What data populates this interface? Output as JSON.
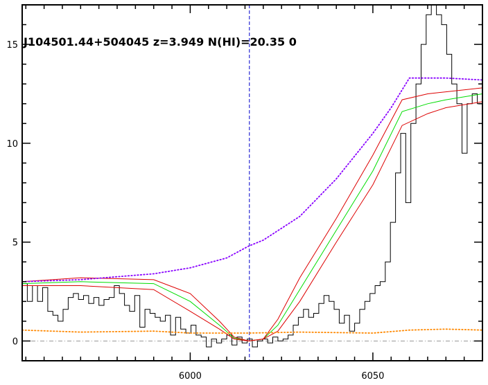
{
  "chart_data": {
    "type": "line",
    "title": "J104501.44+504045 z=3.949 N(HI)=20.35 0",
    "xlabel": "",
    "ylabel": "",
    "xlim": [
      5954,
      6080
    ],
    "ylim": [
      -1.0,
      17.0
    ],
    "x_ticks": [
      6000,
      6050
    ],
    "y_ticks": [
      0,
      5,
      10,
      15
    ],
    "x_minor_step": 5,
    "y_minor_step": 1,
    "grid": false,
    "marker_x": 6016.2,
    "zero_level": 0,
    "colors": {
      "flux": "#000000",
      "model": "#00dd00",
      "model_bounds": "#dd0000",
      "continuum": "#8800ff",
      "error": "#ff8800",
      "marker": "#0000cc",
      "zero_line": "#999999"
    },
    "series": [
      {
        "role": "flux",
        "style": "step",
        "x": [
          5954.0,
          5955.4,
          5956.8,
          5958.2,
          5959.6,
          5961.0,
          5962.4,
          5963.8,
          5965.2,
          5966.6,
          5968.0,
          5969.4,
          5970.8,
          5972.2,
          5973.6,
          5975.0,
          5976.4,
          5977.8,
          5979.2,
          5980.6,
          5982.0,
          5983.4,
          5984.8,
          5986.2,
          5987.6,
          5989.0,
          5990.4,
          5991.8,
          5993.2,
          5994.6,
          5996.0,
          5997.4,
          5998.8,
          6000.2,
          6001.6,
          6003.0,
          6004.4,
          6005.8,
          6007.2,
          6008.6,
          6010.0,
          6011.4,
          6012.8,
          6014.2,
          6015.6,
          6017.0,
          6018.4,
          6019.8,
          6021.2,
          6022.6,
          6024.0,
          6025.4,
          6026.8,
          6028.2,
          6029.6,
          6031.0,
          6032.4,
          6033.8,
          6035.2,
          6036.6,
          6038.0,
          6039.4,
          6040.8,
          6042.2,
          6043.6,
          6045.0,
          6046.4,
          6047.8,
          6049.2,
          6050.6,
          6052.0,
          6053.4,
          6054.8,
          6056.2,
          6057.6,
          6059.0,
          6060.4,
          6061.8,
          6063.2,
          6064.6,
          6066.0,
          6067.4,
          6068.8,
          6070.2,
          6071.6,
          6073.0,
          6074.4,
          6075.8,
          6077.2,
          6078.6,
          6080.0
        ],
        "y": [
          2.9,
          2.0,
          2.8,
          2.0,
          2.7,
          1.5,
          1.3,
          1.0,
          1.6,
          2.2,
          2.4,
          2.1,
          2.3,
          1.9,
          2.2,
          1.8,
          2.1,
          2.2,
          2.8,
          2.4,
          1.8,
          1.5,
          2.3,
          0.7,
          1.6,
          1.4,
          1.2,
          1.0,
          1.3,
          0.3,
          1.2,
          0.6,
          0.4,
          0.8,
          0.3,
          0.2,
          -0.3,
          0.1,
          -0.1,
          0.1,
          0.3,
          -0.2,
          0.2,
          -0.1,
          0.1,
          -0.3,
          0.0,
          0.1,
          -0.1,
          0.2,
          0.0,
          0.1,
          0.3,
          0.8,
          1.2,
          1.6,
          1.2,
          1.4,
          1.9,
          2.3,
          2.0,
          1.6,
          0.9,
          1.3,
          0.5,
          0.9,
          1.6,
          2.0,
          2.4,
          2.8,
          3.0,
          4.0,
          6.0,
          8.5,
          10.5,
          7.0,
          11.0,
          13.0,
          15.0,
          16.5,
          17.0,
          16.5,
          16.0,
          14.5,
          13.0,
          12.0,
          9.5,
          12.0,
          12.5,
          12.0,
          11.5
        ]
      },
      {
        "role": "model",
        "style": "line",
        "x": [
          5954,
          5970,
          5990,
          6000,
          6008,
          6012,
          6016,
          6020,
          6024,
          6030,
          6040,
          6050,
          6058,
          6065,
          6070,
          6080
        ],
        "y": [
          2.9,
          3.0,
          2.9,
          2.0,
          0.8,
          0.15,
          0.0,
          0.1,
          0.8,
          2.6,
          5.6,
          8.6,
          11.6,
          12.0,
          12.2,
          12.5
        ]
      },
      {
        "role": "model-upper",
        "style": "line",
        "x": [
          5954,
          5970,
          5990,
          6000,
          6008,
          6012,
          6016,
          6020,
          6024,
          6030,
          6040,
          6050,
          6058,
          6065,
          6070,
          6080
        ],
        "y": [
          3.0,
          3.2,
          3.1,
          2.4,
          1.0,
          0.2,
          0.0,
          0.1,
          1.1,
          3.2,
          6.2,
          9.4,
          12.2,
          12.5,
          12.6,
          12.8
        ]
      },
      {
        "role": "model-lower",
        "style": "line",
        "x": [
          5954,
          5970,
          5990,
          6000,
          6008,
          6012,
          6016,
          6020,
          6024,
          6030,
          6040,
          6050,
          6058,
          6065,
          6070,
          6080
        ],
        "y": [
          2.8,
          2.8,
          2.6,
          1.5,
          0.6,
          0.1,
          0.0,
          0.1,
          0.5,
          2.0,
          5.0,
          7.9,
          10.9,
          11.5,
          11.8,
          12.1
        ]
      },
      {
        "role": "continuum",
        "style": "dotted",
        "x": [
          5954,
          5970,
          5990,
          6000,
          6010,
          6016,
          6020,
          6030,
          6040,
          6050,
          6055,
          6060,
          6062,
          6070,
          6080
        ],
        "y": [
          3.0,
          3.1,
          3.4,
          3.7,
          4.2,
          4.8,
          5.1,
          6.3,
          8.2,
          10.5,
          11.8,
          13.3,
          13.3,
          13.3,
          13.2
        ]
      },
      {
        "role": "error",
        "style": "dotted",
        "x": [
          5954,
          5970,
          5990,
          6000,
          6016,
          6030,
          6050,
          6060,
          6070,
          6080
        ],
        "y": [
          0.55,
          0.45,
          0.5,
          0.4,
          0.4,
          0.45,
          0.4,
          0.55,
          0.6,
          0.55
        ]
      }
    ]
  }
}
